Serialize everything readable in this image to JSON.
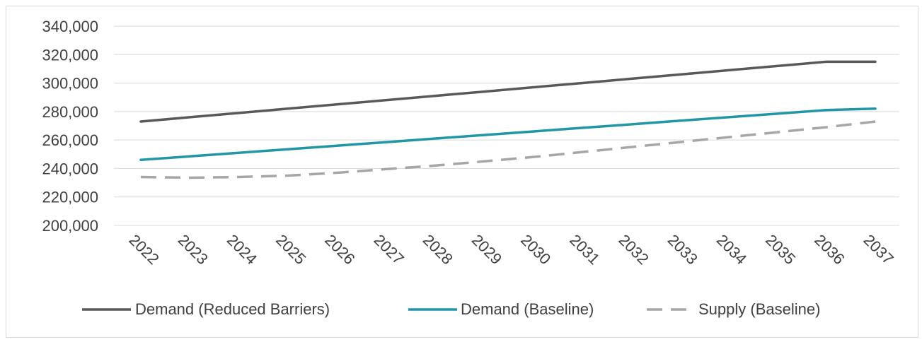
{
  "chart_data": {
    "type": "line",
    "title": "",
    "xlabel": "",
    "ylabel": "",
    "x": [
      "2022",
      "2023",
      "2024",
      "2025",
      "2026",
      "2027",
      "2028",
      "2029",
      "2030",
      "2031",
      "2032",
      "2033",
      "2034",
      "2035",
      "2036",
      "2037"
    ],
    "ylim": [
      200000,
      340000
    ],
    "yticks": [
      "200,000",
      "220,000",
      "240,000",
      "260,000",
      "280,000",
      "300,000",
      "320,000",
      "340,000"
    ],
    "grid": "horizontal",
    "legend_position": "bottom",
    "series": [
      {
        "name": "Demand (Reduced Barriers)",
        "color": "#595959",
        "style": "solid",
        "values": [
          273000,
          276000,
          279000,
          282000,
          285000,
          288000,
          291000,
          294000,
          297000,
          300000,
          303000,
          306000,
          309000,
          312000,
          315000,
          315000
        ]
      },
      {
        "name": "Demand (Baseline)",
        "color": "#2196a6",
        "style": "solid",
        "values": [
          246000,
          248500,
          251000,
          253500,
          256000,
          258500,
          261000,
          263500,
          266000,
          268500,
          271000,
          273500,
          276000,
          278500,
          281000,
          282000
        ]
      },
      {
        "name": "Supply (Baseline)",
        "color": "#a6a6a6",
        "style": "dashed",
        "values": [
          234000,
          233500,
          234000,
          235000,
          237000,
          239500,
          242000,
          245000,
          248000,
          251500,
          255000,
          258500,
          262000,
          265500,
          269000,
          273000
        ]
      }
    ]
  }
}
